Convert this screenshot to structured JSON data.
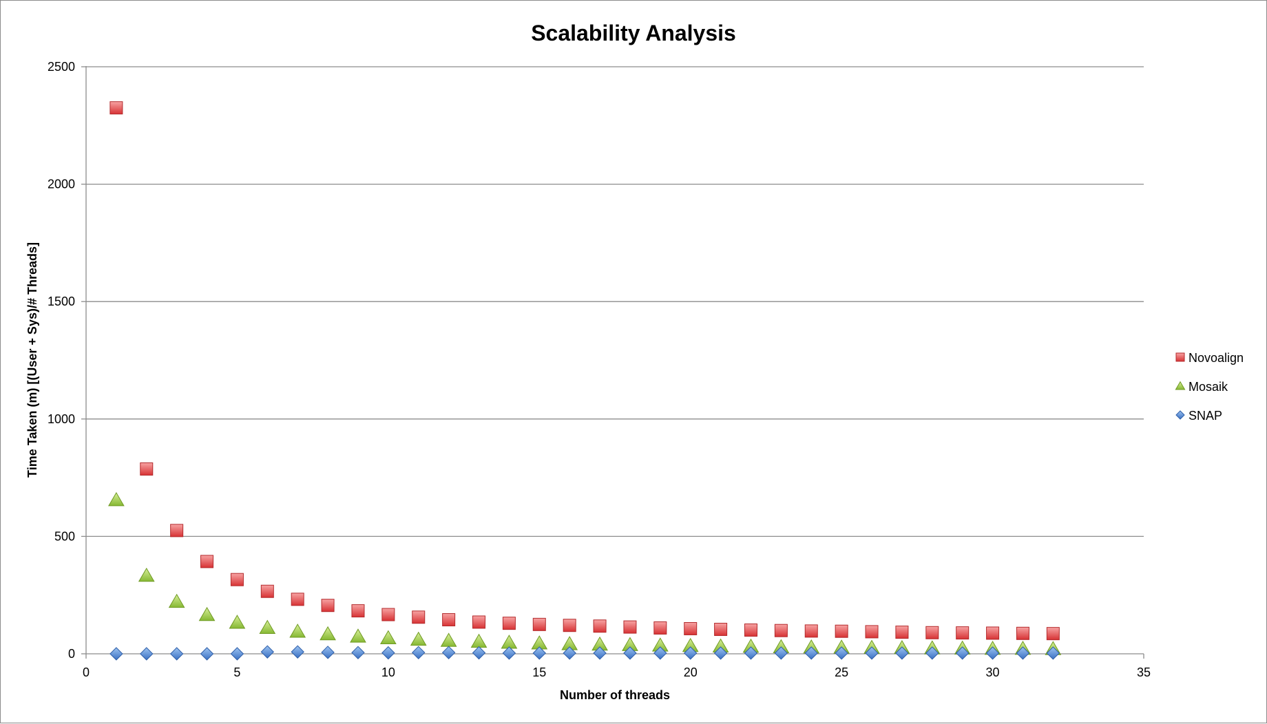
{
  "chart_data": {
    "type": "scatter",
    "title": "Scalability Analysis",
    "xlabel": "Number of threads",
    "ylabel": "Time Taken (m) [(User + Sys)/# Threads]",
    "xlim": [
      0,
      35
    ],
    "ylim": [
      0,
      2500
    ],
    "x_ticks": [
      0,
      5,
      10,
      15,
      20,
      25,
      30,
      35
    ],
    "y_ticks": [
      0,
      500,
      1000,
      1500,
      2000,
      2500
    ],
    "grid": "horizontal",
    "legend_position": "right",
    "x": [
      1,
      2,
      3,
      4,
      5,
      6,
      7,
      8,
      9,
      10,
      11,
      12,
      13,
      14,
      15,
      16,
      17,
      18,
      19,
      20,
      21,
      22,
      23,
      24,
      25,
      26,
      27,
      28,
      29,
      30,
      31,
      32
    ],
    "series": [
      {
        "name": "Novoalign",
        "marker": "square",
        "color": "#e8484a",
        "values": [
          2325,
          787,
          525,
          393,
          316,
          266,
          232,
          206,
          183,
          167,
          156,
          145,
          135,
          130,
          125,
          121,
          118,
          114,
          110,
          107,
          104,
          101,
          99,
          97,
          96,
          94,
          92,
          90,
          89,
          88,
          87,
          86
        ]
      },
      {
        "name": "Mosaik",
        "marker": "triangle",
        "color": "#9dc943",
        "values": [
          655,
          333,
          222,
          166,
          133,
          111,
          95,
          84,
          74,
          67,
          61,
          56,
          52,
          48,
          45,
          42,
          40,
          38,
          36,
          34,
          32,
          31,
          29,
          28,
          27,
          26,
          25,
          24,
          23,
          22,
          22,
          21
        ]
      },
      {
        "name": "SNAP",
        "marker": "diamond",
        "color": "#4f86d4",
        "values": [
          0,
          0,
          0,
          0,
          0,
          8,
          8,
          6,
          5,
          4,
          5,
          5,
          4,
          3,
          3,
          3,
          3,
          3,
          3,
          3,
          3,
          3,
          3,
          3,
          3,
          3,
          3,
          3,
          3,
          3,
          3,
          3
        ]
      }
    ]
  }
}
